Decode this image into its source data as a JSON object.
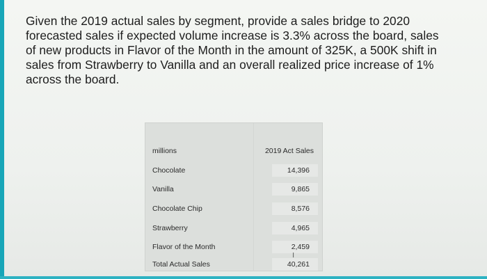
{
  "question": {
    "lines": [
      "Given the 2019 actual sales by segment, provide a sales bridge to 2020",
      "forecasted sales if expected volume increase is 3.3% across the board, sales",
      "of new products in Flavor of the Month in the amount of 325K, a 500K shift in",
      "sales from Strawberry to Vanilla and an overall realized price increase of 1%",
      "across the board."
    ]
  },
  "table": {
    "header": {
      "label": "millions",
      "value": "2019 Act Sales"
    },
    "rows": [
      {
        "label": "Chocolate",
        "value": "14,396"
      },
      {
        "label": "Vanilla",
        "value": "9,865"
      },
      {
        "label": "Chocolate Chip",
        "value": "8,576"
      },
      {
        "label": "Strawberry",
        "value": "4,965"
      },
      {
        "label": "Flavor of the Month",
        "value": "2,459"
      },
      {
        "label": "Total Actual Sales",
        "value": "40,261"
      }
    ]
  },
  "colors": {
    "accent": "#18a6b8",
    "text": "#1c1c1c"
  }
}
